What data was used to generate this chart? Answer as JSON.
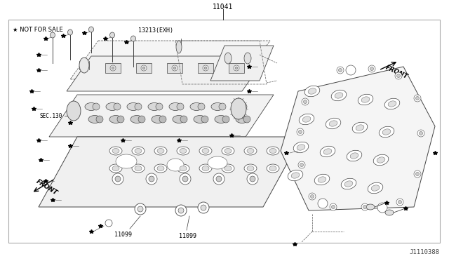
{
  "bg_color": "#ffffff",
  "line_color": "#000000",
  "text_color": "#000000",
  "gray_line": "#888888",
  "title_above": "11041",
  "label_not_for_sale": "★ NOT FOR SALE",
  "label_13213": "13213(EXH)",
  "label_11099_1": "11099",
  "label_11099_2": "11099",
  "label_sec130": "SEC.130",
  "label_front_left": "FRONT",
  "label_front_right": "FRONT",
  "part_number_bottom_right": "J1110388"
}
